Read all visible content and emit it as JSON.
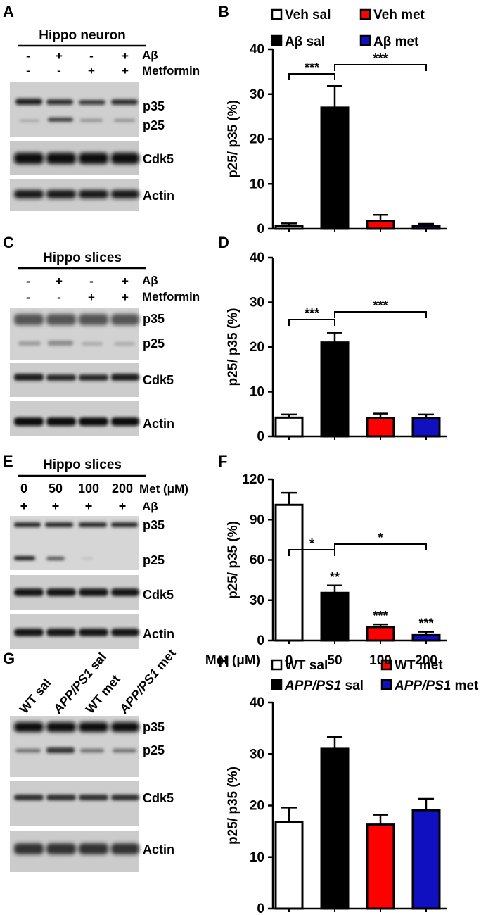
{
  "panel_letters": [
    "A",
    "B",
    "C",
    "D",
    "E",
    "F",
    "G",
    "H"
  ],
  "blots": {
    "A": {
      "title": "Hippo neuron",
      "lanes": [
        [
          "-",
          "-"
        ],
        [
          "+",
          "-"
        ],
        [
          "-",
          "+"
        ],
        [
          "+",
          "+"
        ]
      ],
      "row_labels": [
        "Aβ",
        "Metformin"
      ],
      "bands": [
        "p35",
        "p25",
        "Cdk5",
        "Actin"
      ]
    },
    "C": {
      "title": "Hippo slices",
      "lanes": [
        [
          "-",
          "-"
        ],
        [
          "+",
          "-"
        ],
        [
          "-",
          "+"
        ],
        [
          "+",
          "+"
        ]
      ],
      "row_labels": [
        "Aβ",
        "Metformin"
      ],
      "bands": [
        "p35",
        "p25",
        "Cdk5",
        "Actin"
      ]
    },
    "E": {
      "title": "Hippo slices",
      "lanes": [
        [
          "0",
          "+"
        ],
        [
          "50",
          "+"
        ],
        [
          "100",
          "+"
        ],
        [
          "200",
          "+"
        ]
      ],
      "row_labels": [
        "Met (μM)",
        "Aβ"
      ],
      "bands": [
        "p35",
        "p25",
        "Cdk5",
        "Actin"
      ]
    },
    "G": {
      "lanes": [
        {
          "plain": "WT sal",
          "italic": "",
          "rest": ""
        },
        {
          "plain": "",
          "italic": "APP/PS1",
          "rest": " sal"
        },
        {
          "plain": "WT met",
          "italic": "",
          "rest": ""
        },
        {
          "plain": "",
          "italic": "APP/PS1",
          "rest": " met"
        }
      ],
      "bands": [
        "p35",
        "p25",
        "Cdk5",
        "Actin"
      ]
    }
  },
  "colors": {
    "veh_sal": "#ffffff",
    "ab_sal": "#000000",
    "veh_met": "#ff0000",
    "ab_met": "#1010c0"
  },
  "chart_data": [
    {
      "panel": "B",
      "type": "bar",
      "ylabel": "p25/ p35 (%)",
      "ylim": [
        0,
        40
      ],
      "yticks": [
        0,
        10,
        20,
        30,
        40
      ],
      "legend": [
        "Veh sal",
        "Veh met",
        "Aβ sal",
        "Aβ met"
      ],
      "series": [
        {
          "name": "Veh sal",
          "value": 0.7,
          "error": 0.5
        },
        {
          "name": "Aβ sal",
          "value": 27,
          "error": 4.8
        },
        {
          "name": "Veh met",
          "value": 1.8,
          "error": 1.3
        },
        {
          "name": "Aβ met",
          "value": 0.7,
          "error": 0.4
        }
      ],
      "brackets": [
        {
          "from": 0,
          "to": 1,
          "label": "***"
        },
        {
          "from": 1,
          "to": 3,
          "label": "***"
        }
      ]
    },
    {
      "panel": "D",
      "type": "bar",
      "ylabel": "p25/ p35 (%)",
      "ylim": [
        0,
        40
      ],
      "yticks": [
        0,
        10,
        20,
        30,
        40
      ],
      "series": [
        {
          "name": "Veh sal",
          "value": 4.2,
          "error": 0.7
        },
        {
          "name": "Aβ sal",
          "value": 21,
          "error": 2.2
        },
        {
          "name": "Veh met",
          "value": 4.1,
          "error": 1.0
        },
        {
          "name": "Aβ met",
          "value": 4.1,
          "error": 0.8
        }
      ],
      "brackets": [
        {
          "from": 0,
          "to": 1,
          "label": "***"
        },
        {
          "from": 1,
          "to": 3,
          "label": "***"
        }
      ]
    },
    {
      "panel": "F",
      "type": "bar",
      "ylabel": "p25/ p35 (%)",
      "xlabel": "Met (μM)",
      "ylim": [
        0,
        120
      ],
      "yticks": [
        0,
        30,
        60,
        90,
        120
      ],
      "categories": [
        "0",
        "50",
        "100",
        "200"
      ],
      "series": [
        {
          "name": "0",
          "value": 101,
          "error": 9,
          "sig": ""
        },
        {
          "name": "50",
          "value": 35.5,
          "error": 5.5,
          "sig": "**"
        },
        {
          "name": "100",
          "value": 10,
          "error": 2,
          "sig": "***"
        },
        {
          "name": "200",
          "value": 4,
          "error": 2.5,
          "sig": "***"
        }
      ]
    },
    {
      "panel": "H",
      "type": "bar",
      "ylabel": "p25/ p35 (%)",
      "ylim": [
        0,
        40
      ],
      "yticks": [
        0,
        10,
        20,
        30,
        40
      ],
      "legend": [
        "WT sal",
        "WT met",
        "APP/PS1 sal",
        "APP/PS1 met"
      ],
      "series": [
        {
          "name": "WT sal",
          "value": 16.8,
          "error": 2.8
        },
        {
          "name": "APP/PS1 sal",
          "value": 31,
          "error": 2.3
        },
        {
          "name": "WT met",
          "value": 16.3,
          "error": 1.9
        },
        {
          "name": "APP/PS1 met",
          "value": 19.1,
          "error": 2.2
        }
      ],
      "brackets": [
        {
          "from": 0,
          "to": 1,
          "label": "*"
        },
        {
          "from": 1,
          "to": 3,
          "label": "*"
        }
      ]
    }
  ]
}
